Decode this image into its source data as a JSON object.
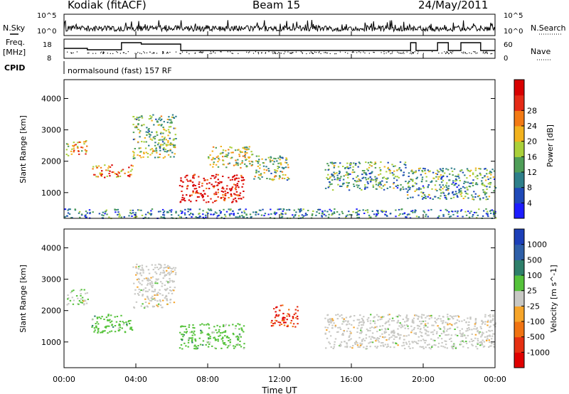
{
  "header": {
    "station": "Kodiak (fitACF)",
    "beam": "Beam 15",
    "date": "24/May/2011",
    "nsky_label": "N.Sky",
    "nsky_tick_top": "10^5",
    "nsky_tick_bottom": "10^0",
    "nsearch_label": "N.Search",
    "nsearch_tick_top": "10^5",
    "nsearch_tick_bottom": "10^0",
    "freq_label": "Freq.",
    "freq_unit": "[MHz]",
    "freq_tick_top": "18",
    "freq_tick_bottom": "8",
    "nave_label": "Nave",
    "nave_tick_top": "60",
    "nave_tick_bottom": "0",
    "cpid_label": "CPID",
    "cpid_value": "normalsound (fast) 157 RF"
  },
  "chart_data": [
    {
      "type": "heatmap",
      "title": "",
      "ylabel": "Slant Range [km]",
      "ylim": [
        180,
        4600
      ],
      "yticks": [
        "1000",
        "2000",
        "3000",
        "4000"
      ],
      "colorbar": {
        "label": "Power [dB]",
        "range": [
          0,
          32
        ],
        "ticks": [
          "4",
          "8",
          "12",
          "16",
          "20",
          "24",
          "28"
        ],
        "colors": [
          "#1c1cff",
          "#1f49b8",
          "#2e7f8a",
          "#4f9e58",
          "#aad03a",
          "#f2b21e",
          "#f37a14",
          "#e52a16",
          "#d80000"
        ]
      },
      "echo_regions": [
        {
          "t0": 0.1,
          "t1": 1.3,
          "r0": 2200,
          "r1": 2700,
          "level": 0.6
        },
        {
          "t0": 1.5,
          "t1": 3.8,
          "r0": 1500,
          "r1": 1900,
          "level": 0.7
        },
        {
          "t0": 3.8,
          "t1": 6.2,
          "r0": 2100,
          "r1": 3500,
          "level": 0.45
        },
        {
          "t0": 6.4,
          "t1": 10.0,
          "r0": 700,
          "r1": 1600,
          "level": 0.95
        },
        {
          "t0": 8.0,
          "t1": 10.5,
          "r0": 1800,
          "r1": 2500,
          "level": 0.5
        },
        {
          "t0": 10.5,
          "t1": 12.5,
          "r0": 1400,
          "r1": 2200,
          "level": 0.45
        },
        {
          "t0": 14.5,
          "t1": 19.0,
          "r0": 1100,
          "r1": 2000,
          "level": 0.35
        },
        {
          "t0": 19.0,
          "t1": 24.0,
          "r0": 800,
          "r1": 1800,
          "level": 0.35
        },
        {
          "t0": 0.0,
          "t1": 24.0,
          "r0": 200,
          "r1": 500,
          "level": 0.25
        }
      ]
    },
    {
      "type": "heatmap",
      "title": "",
      "ylabel": "Slant Range [km]",
      "xlabel": "Time UT",
      "xlim": [
        0,
        24
      ],
      "xticks": [
        "00:00",
        "04:00",
        "08:00",
        "12:00",
        "16:00",
        "20:00",
        "00:00"
      ],
      "ylim": [
        180,
        4600
      ],
      "yticks": [
        "1000",
        "2000",
        "3000",
        "4000"
      ],
      "colorbar": {
        "label": "Velocity [m s^-1]",
        "ticks": [
          "1000",
          "500",
          "100",
          "25",
          "-25",
          "-100",
          "-500",
          "-1000"
        ],
        "colors": [
          "#1c3fb8",
          "#2e5fa8",
          "#2e7f6a",
          "#55c23a",
          "#c8c8c4",
          "#f6a52a",
          "#f07312",
          "#e63012",
          "#e00000"
        ]
      },
      "echo_regions": [
        {
          "t0": 0.1,
          "t1": 1.3,
          "r0": 2200,
          "r1": 2700,
          "class": "slow-positive"
        },
        {
          "t0": 1.5,
          "t1": 3.8,
          "r0": 1300,
          "r1": 1900,
          "class": "positive"
        },
        {
          "t0": 3.8,
          "t1": 6.2,
          "r0": 2100,
          "r1": 3500,
          "class": "ground"
        },
        {
          "t0": 6.4,
          "t1": 10.0,
          "r0": 800,
          "r1": 1600,
          "class": "positive"
        },
        {
          "t0": 11.5,
          "t1": 13.0,
          "r0": 1500,
          "r1": 2200,
          "class": "negative"
        },
        {
          "t0": 14.5,
          "t1": 24.0,
          "r0": 800,
          "r1": 1900,
          "class": "ground"
        }
      ]
    }
  ]
}
